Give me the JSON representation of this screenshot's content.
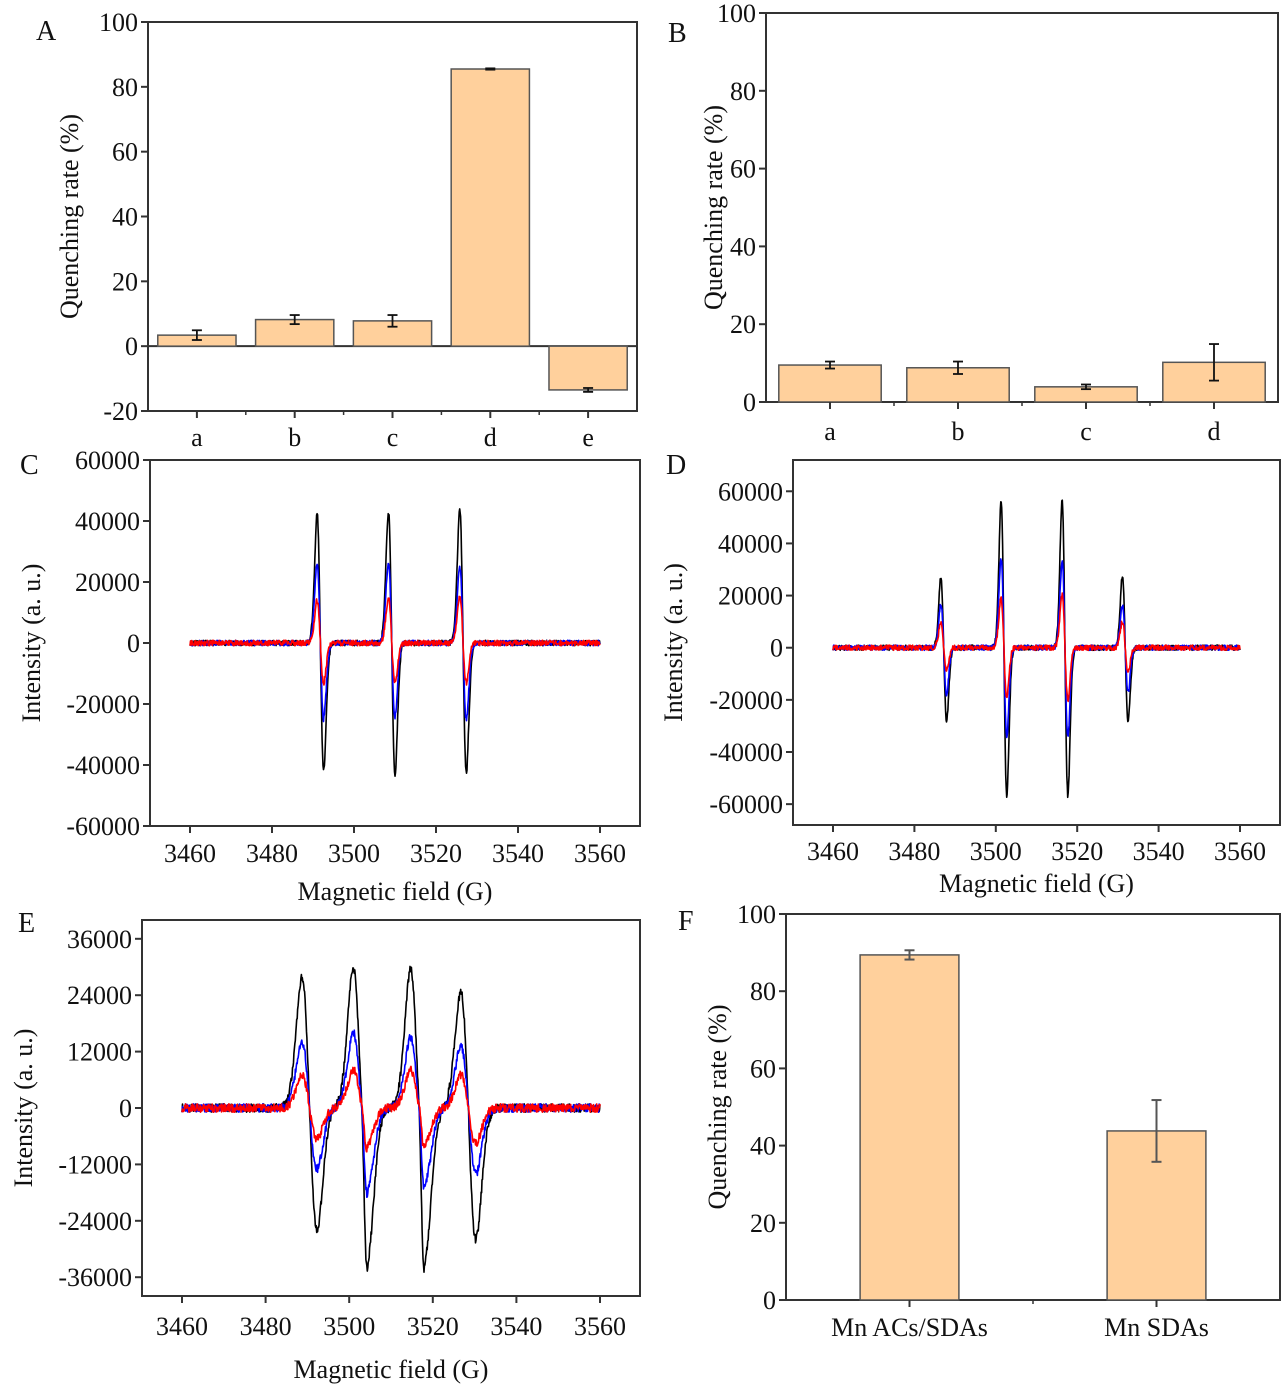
{
  "colors": {
    "bar_fill": "#FFD09C",
    "bar_stroke": "#555555",
    "trace_black": "#000000",
    "trace_blue": "#0000FF",
    "trace_red": "#FF0000"
  },
  "chart_data": [
    {
      "id": "A",
      "type": "bar",
      "panel_label": "A",
      "title": "",
      "xlabel": "",
      "ylabel": "Quenching rate (%)",
      "categories": [
        "a",
        "b",
        "c",
        "d",
        "e"
      ],
      "values": [
        3.4,
        8.2,
        7.8,
        85.5,
        -13.5
      ],
      "errors": [
        1.5,
        1.4,
        1.8,
        0.2,
        0.6
      ],
      "ylim": [
        -20,
        100
      ],
      "yticks": [
        -20,
        0,
        20,
        40,
        60,
        80,
        100
      ],
      "ytick_labels": [
        "-20",
        "0",
        "20",
        "40",
        "60",
        "80",
        "100"
      ],
      "grid": false
    },
    {
      "id": "B",
      "type": "bar",
      "panel_label": "B",
      "title": "",
      "xlabel": "",
      "ylabel": "Quenching rate (%)",
      "categories": [
        "a",
        "b",
        "c",
        "d"
      ],
      "values": [
        9.5,
        8.8,
        3.9,
        10.2
      ],
      "errors": [
        0.9,
        1.6,
        0.6,
        4.7
      ],
      "ylim": [
        0,
        100
      ],
      "yticks": [
        0,
        20,
        40,
        60,
        80,
        100
      ],
      "ytick_labels": [
        "0",
        "20",
        "40",
        "60",
        "80",
        "100"
      ],
      "grid": false
    },
    {
      "id": "C",
      "type": "line",
      "panel_label": "C",
      "title": "",
      "xlabel": "Magnetic field (G)",
      "ylabel": "Intensity (a. u.)",
      "xlim": [
        3460,
        3560
      ],
      "ylim": [
        -60000,
        60000
      ],
      "xticks": [
        3460,
        3480,
        3500,
        3520,
        3540,
        3560
      ],
      "xtick_labels": [
        "3460",
        "3480",
        "3500",
        "3520",
        "3540",
        "3560"
      ],
      "yticks": [
        -60000,
        -40000,
        -20000,
        0,
        20000,
        40000,
        60000
      ],
      "ytick_labels": [
        "-60000",
        "-40000",
        "-20000",
        "0",
        "20000",
        "40000",
        "60000"
      ],
      "line_centers": [
        3491.8,
        3509.2,
        3526.6
      ],
      "line_halfwidth": 0.8,
      "series": [
        {
          "name": "black",
          "color": "#000000",
          "noise": 900,
          "peaks": [
            42000,
            43000,
            43500
          ],
          "troughs": [
            -42000,
            -43000,
            -42500
          ]
        },
        {
          "name": "blue",
          "color": "#0000FF",
          "noise": 900,
          "peaks": [
            26000,
            26500,
            25000
          ],
          "troughs": [
            -25000,
            -24000,
            -25000
          ]
        },
        {
          "name": "red",
          "color": "#FF0000",
          "noise": 900,
          "peaks": [
            14000,
            15000,
            15000
          ],
          "troughs": [
            -13000,
            -13000,
            -13000
          ]
        }
      ],
      "grid": false
    },
    {
      "id": "D",
      "type": "line",
      "panel_label": "D",
      "title": "",
      "xlabel": "Magnetic field (G)",
      "ylabel": "Intensity (a. u.)",
      "xlim": [
        3460,
        3560
      ],
      "ylim": [
        -70000,
        70000
      ],
      "xticks": [
        3460,
        3480,
        3500,
        3520,
        3540,
        3560
      ],
      "xtick_labels": [
        "3460",
        "3480",
        "3500",
        "3520",
        "3540",
        "3560"
      ],
      "yticks": [
        -60000,
        -40000,
        -20000,
        0,
        20000,
        40000,
        60000
      ],
      "ytick_labels": [
        "-60000",
        "-40000",
        "-20000",
        "0",
        "20000",
        "40000",
        "60000"
      ],
      "line_centers": [
        3487.2,
        3502.0,
        3517.0,
        3531.8
      ],
      "line_halfwidth": 0.7,
      "series": [
        {
          "name": "black",
          "color": "#000000",
          "noise": 1000,
          "peaks": [
            27000,
            56000,
            56500,
            27500
          ],
          "troughs": [
            -28000,
            -56500,
            -56500,
            -28000
          ]
        },
        {
          "name": "blue",
          "color": "#0000FF",
          "noise": 1000,
          "peaks": [
            17000,
            34000,
            33000,
            16000
          ],
          "troughs": [
            -18000,
            -34000,
            -34000,
            -17000
          ]
        },
        {
          "name": "red",
          "color": "#FF0000",
          "noise": 1000,
          "peaks": [
            9500,
            19000,
            20500,
            10000
          ],
          "troughs": [
            -8500,
            -19000,
            -20000,
            -9000
          ]
        }
      ],
      "grid": false
    },
    {
      "id": "E",
      "type": "line",
      "panel_label": "E",
      "title": "",
      "xlabel": "Magnetic field (G)",
      "ylabel": "Intensity (a. u.)",
      "xlim": [
        3460,
        3560
      ],
      "ylim": [
        -40000,
        40000
      ],
      "xticks": [
        3460,
        3480,
        3500,
        3520,
        3540,
        3560
      ],
      "xtick_labels": [
        "3460",
        "3480",
        "3500",
        "3520",
        "3540",
        "3560"
      ],
      "yticks": [
        -36000,
        -24000,
        -12000,
        0,
        12000,
        24000,
        36000
      ],
      "ytick_labels": [
        "-36000",
        "-24000",
        "-12000",
        "0",
        "12000",
        "24000",
        "36000"
      ],
      "line_centers": [
        3490.5,
        3502.8,
        3516.5,
        3528.5
      ],
      "line_halfwidth": 1.8,
      "small_line_centers": [
        3503.6,
        3517.3
      ],
      "series": [
        {
          "name": "black",
          "color": "#000000",
          "noise": 900,
          "peaks": [
            28000,
            30000,
            29500,
            24500
          ],
          "troughs": [
            -26000,
            -30000,
            -30000,
            -28000
          ],
          "small": 6000
        },
        {
          "name": "blue",
          "color": "#0000FF",
          "noise": 900,
          "peaks": [
            14000,
            16000,
            15000,
            13000
          ],
          "troughs": [
            -13000,
            -16000,
            -15000,
            -14000
          ],
          "small": 3000
        },
        {
          "name": "red",
          "color": "#FF0000",
          "noise": 900,
          "peaks": [
            7000,
            8000,
            8000,
            7000
          ],
          "troughs": [
            -6500,
            -7000,
            -7000,
            -7500
          ],
          "small": 2000
        }
      ],
      "grid": false
    },
    {
      "id": "F",
      "type": "bar",
      "panel_label": "F",
      "title": "",
      "xlabel": "",
      "ylabel": "Quenching rate (%)",
      "categories": [
        "Mn ACs/SDAs",
        "Mn SDAs"
      ],
      "values": [
        89.4,
        43.8
      ],
      "errors": [
        1.2,
        8.0
      ],
      "ylim": [
        0,
        100
      ],
      "yticks": [
        0,
        20,
        40,
        60,
        80,
        100
      ],
      "ytick_labels": [
        "0",
        "20",
        "40",
        "60",
        "80",
        "100"
      ],
      "grid": false
    }
  ]
}
